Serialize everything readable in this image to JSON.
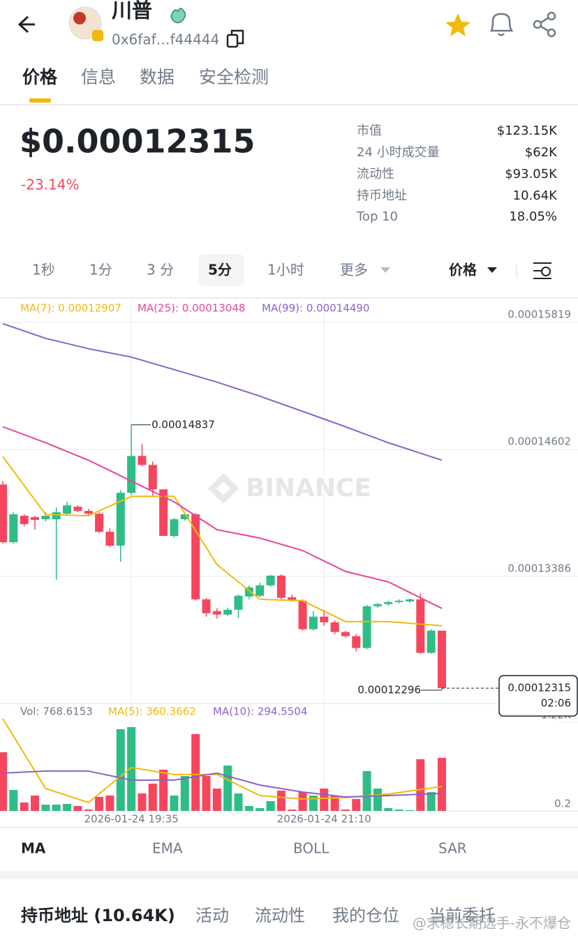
{
  "header": {
    "token_name": "川普",
    "address": "0x6faf…f44444"
  },
  "tabs": [
    "价格",
    "信息",
    "数据",
    "安全检测"
  ],
  "price": "$0.00012315",
  "change": "-23.14%",
  "stats": [
    [
      "市值",
      "$123.15K"
    ],
    [
      "24 小时成交量",
      "$62K"
    ],
    [
      "流动性",
      "$93.05K"
    ],
    [
      "持币地址",
      "10.64K"
    ],
    [
      "Top 10",
      "18.05%"
    ]
  ],
  "intervals": [
    "1秒",
    "1分",
    "3 分",
    "5分",
    "1小时",
    "更多"
  ],
  "price_toggle": "价格",
  "chart_data": {
    "type": "candlestick",
    "up_color": "#2ebd85",
    "down_color": "#f6465d",
    "grid": true,
    "categories": [
      null,
      null,
      null,
      null,
      null,
      null,
      null,
      null,
      null,
      null,
      null,
      null,
      "2026-01-24 19:35",
      null,
      null,
      null,
      null,
      null,
      null,
      null,
      null,
      null,
      null,
      null,
      null,
      null,
      null,
      null,
      null,
      null,
      "2026-01-24 21:10",
      null,
      null,
      null,
      null,
      null,
      null,
      null,
      null,
      null,
      null,
      null
    ],
    "open": [
      0.00014266,
      0.00013713,
      0.00013966,
      0.00013953,
      0.00013933,
      0.00013933,
      0.00013986,
      0.00014053,
      0.00014013,
      0.00013986,
      0.00013813,
      0.0001368,
      0.00014186,
      0.00014539,
      0.00014453,
      0.00014219,
      0.00013773,
      0.00013933,
      0.0001398,
      0.00013166,
      0.00013053,
      0.0001302,
      0.00013066,
      0.00013193,
      0.000132,
      0.000133,
      0.00013393,
      0.00013186,
      0.00013153,
      0.0001288,
      0.00013,
      0.00012946,
      0.00012853,
      0.00012813,
      0.000127,
      0.000131,
      0.0001312,
      0.0001314,
      0.00013146,
      0.00013166,
      0.00012653,
      0.00012866
    ],
    "high": [
      0.00014299,
      0.00014,
      0.0001398,
      0.00013966,
      0.00014,
      0.00014046,
      0.000141,
      0.00014066,
      0.00014033,
      0.00014,
      0.00013846,
      0.00014213,
      0.00014837,
      0.00014652,
      0.00014486,
      0.00014219,
      0.00013946,
      0.00013993,
      0.00013993,
      0.0001318,
      0.0001308,
      0.00013086,
      0.00013213,
      0.000133,
      0.00013326,
      0.000134,
      0.00013406,
      0.00013213,
      0.00013166,
      0.00013053,
      0.00013066,
      0.00012966,
      0.00012866,
      0.00012833,
      0.00013113,
      0.00013133,
      0.00013153,
      0.00013166,
      0.00013173,
      0.0001322,
      0.0001288,
      0.00012866
    ],
    "low": [
      0.000137,
      0.000137,
      0.00013866,
      0.00013833,
      0.00013913,
      0.00013353,
      0.00013966,
      0.00014,
      0.00013966,
      0.000138,
      0.00013666,
      0.00013526,
      0.00014166,
      0.00014439,
      0.00014153,
      0.00013773,
      0.0001376,
      0.0001392,
      0.00013153,
      0.00013,
      0.0001298,
      0.00013006,
      0.00012986,
      0.00013166,
      0.00013186,
      0.00013286,
      0.00013166,
      0.00013146,
      0.00012866,
      0.00012866,
      0.00012913,
      0.00012833,
      0.000128,
      0.00012666,
      0.00012686,
      0.00013086,
      0.00013106,
      0.00013126,
      0.00013133,
      0.00012646,
      0.00012646,
      0.00012296
    ],
    "close": [
      0.00013713,
      0.0001398,
      0.00013886,
      0.00013926,
      0.00013966,
      0.00014,
      0.00014066,
      0.00014013,
      0.00013986,
      0.00013813,
      0.0001368,
      0.00014186,
      0.00014539,
      0.00014453,
      0.00014219,
      0.00013773,
      0.00013933,
      0.0001398,
      0.00013166,
      0.00013033,
      0.0001302,
      0.00013066,
      0.000132,
      0.0001328,
      0.000133,
      0.00013393,
      0.0001318,
      0.00013153,
      0.0001288,
      0.00013,
      0.00012946,
      0.00012853,
      0.00012813,
      0.000127,
      0.000131,
      0.0001312,
      0.0001314,
      0.00013153,
      0.00013166,
      0.00012653,
      0.00012866,
      0.00012315
    ],
    "ylim": [
      0.00012169,
      0.00016032
    ],
    "yticks": [
      0.00015819,
      0.00014602,
      0.00013386
    ],
    "countdown": "02:06",
    "watermark": "BINANCE",
    "ma_series": [
      {
        "name": "MA(7): 0.00012907",
        "color": "#f0b90b",
        "x": [
          0,
          4,
          8,
          12,
          16,
          20,
          24,
          28,
          32,
          36,
          41
        ],
        "values": [
          0.00014532,
          0.00013979,
          0.00013966,
          0.00014152,
          0.00014152,
          0.00013499,
          0.00013166,
          0.00013153,
          0.00012953,
          0.00012953,
          0.00012913
        ]
      },
      {
        "name": "MA(25): 0.00013048",
        "color": "#e8459a",
        "x": [
          0,
          4,
          8,
          12,
          16,
          20,
          24,
          28,
          32,
          36,
          41
        ],
        "values": [
          0.00014819,
          0.00014666,
          0.00014499,
          0.00014299,
          0.00014099,
          0.00013833,
          0.00013753,
          0.00013633,
          0.00013433,
          0.00013333,
          0.00013079
        ]
      },
      {
        "name": "MA(99): 0.00014490",
        "color": "#8b62c9",
        "x": [
          0,
          4,
          8,
          12,
          16,
          20,
          24,
          28,
          32,
          36,
          41
        ],
        "values": [
          0.00015806,
          0.00015666,
          0.00015566,
          0.00015486,
          0.00015366,
          0.00015246,
          0.00015112,
          0.00014966,
          0.00014819,
          0.00014666,
          0.00014499
        ]
      }
    ],
    "volume": {
      "label": "Vol: 768.6153",
      "ylim": [
        0,
        1440
      ],
      "yticks": [
        {
          "value": 1220,
          "label": "1.22K"
        },
        0.2
      ],
      "values": [
        807,
        288,
        115,
        211,
        86,
        86,
        96,
        67,
        19,
        192,
        211,
        1124,
        1153,
        240,
        375,
        567,
        211,
        480,
        1057,
        480,
        307,
        624,
        240,
        67,
        38,
        134,
        279,
        19,
        259,
        211,
        307,
        211,
        19,
        163,
        548,
        307,
        38,
        19,
        10,
        711,
        259,
        730
      ],
      "ma_series": [
        {
          "name": "MA(5): 360.3662",
          "color": "#f0b90b",
          "x": [
            0,
            4,
            8,
            12,
            16,
            20,
            24,
            28,
            32,
            36,
            41
          ],
          "values": [
            1268,
            307,
            115,
            596,
            500,
            500,
            211,
            163,
            182,
            231,
            336
          ]
        },
        {
          "name": "MA(10): 294.5504",
          "color": "#8b62c9",
          "x": [
            0,
            4,
            8,
            12,
            16,
            20,
            24,
            28,
            32,
            36,
            41
          ],
          "values": [
            519,
            548,
            548,
            423,
            423,
            519,
            355,
            259,
            192,
            211,
            240
          ]
        }
      ]
    }
  },
  "indicator_tabs": [
    "MA",
    "EMA",
    "BOLL",
    "SAR"
  ],
  "bottom_tabs": [
    "持币地址 (10.64K)",
    "活动",
    "流动性",
    "我的仓位",
    "当前委托"
  ],
  "watermark": "@求稳长期选手-永不爆仓"
}
